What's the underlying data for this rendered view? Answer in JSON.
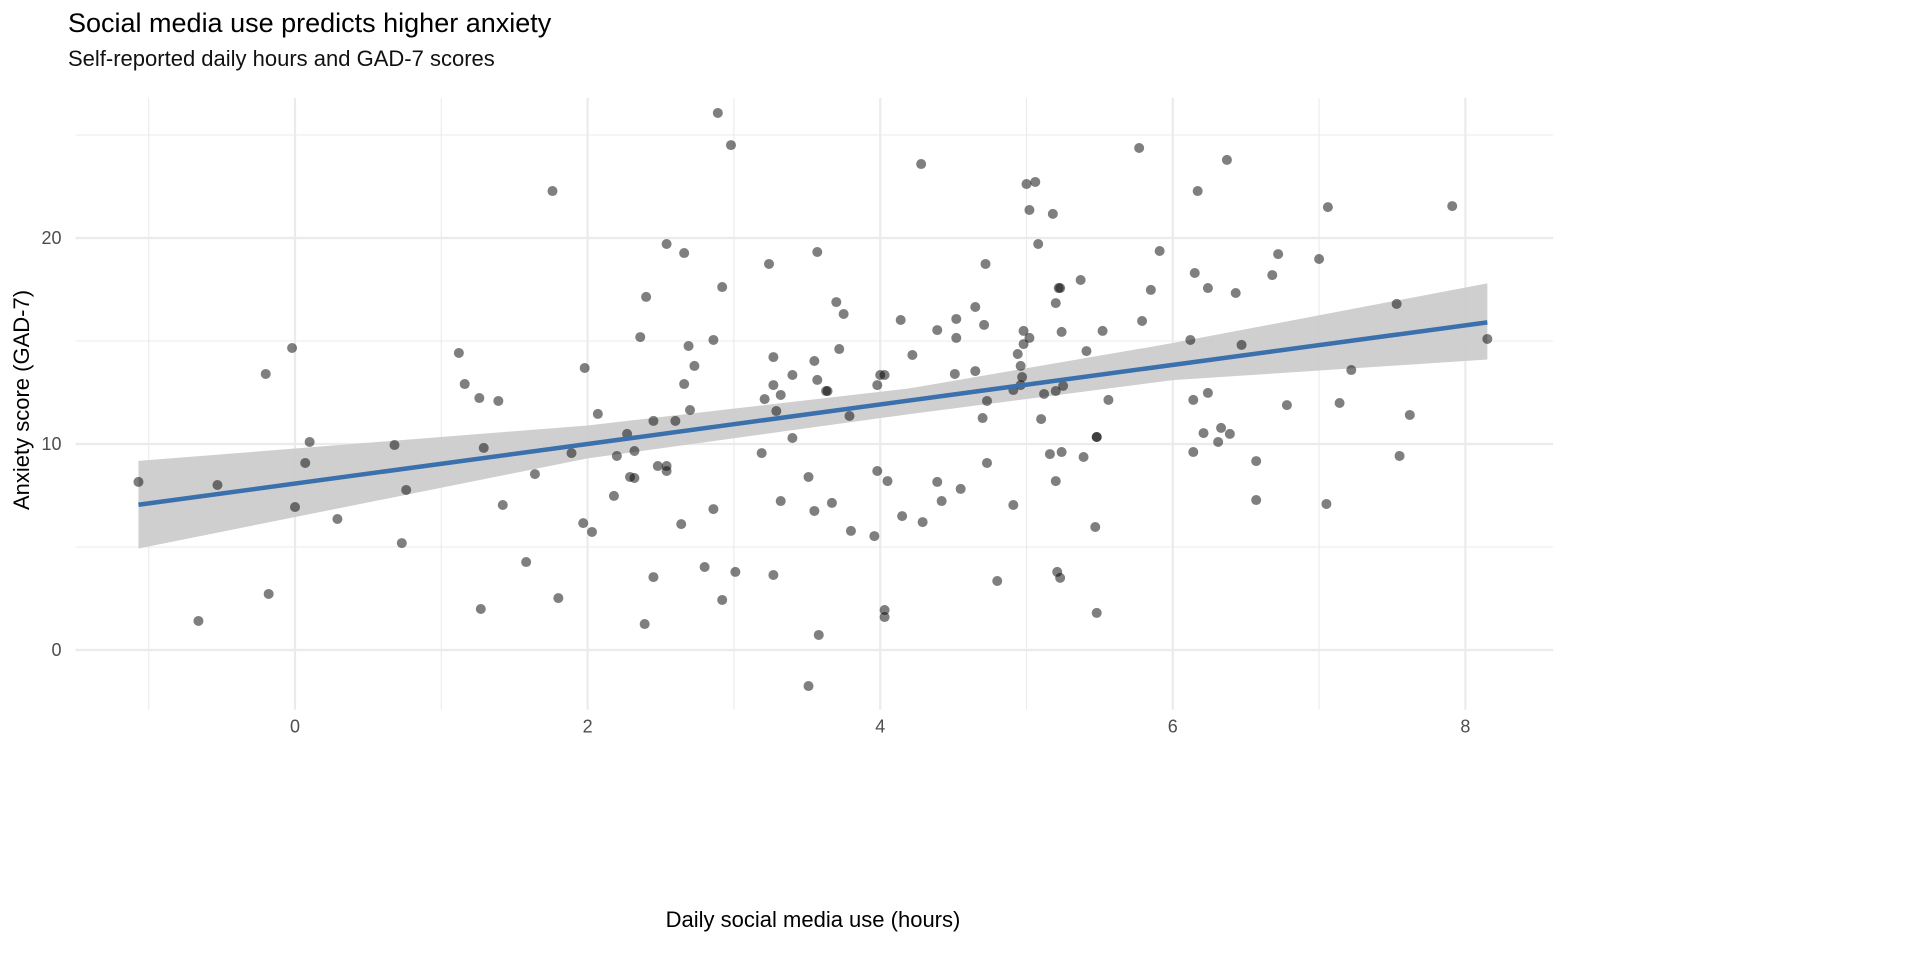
{
  "chart_data": {
    "type": "scatter",
    "title": "Social media use predicts higher anxiety",
    "subtitle": "Self-reported daily hours and GAD-7 scores",
    "xlabel": "Daily social media use (hours)",
    "ylabel": "Anxiety score (GAD-7)",
    "xlim": [
      -1.5,
      8.6
    ],
    "ylim": [
      -2.9,
      26.8
    ],
    "x_ticks": [
      0,
      2,
      4,
      6,
      8
    ],
    "y_ticks": [
      0,
      10,
      20
    ],
    "grid": true,
    "point_color": "#000000",
    "point_opacity": 0.5,
    "trend_color": "#3a70ab",
    "band_color": "#cccccc",
    "trend": {
      "intercept": 8.08,
      "slope": 0.96,
      "x_range": [
        -1.07,
        8.15
      ]
    },
    "confidence_band": [
      {
        "x": -1.07,
        "lower": 4.93,
        "upper": 9.18
      },
      {
        "x": 2.0,
        "lower": 9.3,
        "upper": 10.9
      },
      {
        "x": 4.2,
        "lower": 11.45,
        "upper": 12.7
      },
      {
        "x": 6.0,
        "lower": 13.1,
        "upper": 14.9
      },
      {
        "x": 8.15,
        "lower": 14.1,
        "upper": 17.8
      }
    ],
    "points": [
      [
        -1.07,
        8.16
      ],
      [
        -0.66,
        1.41
      ],
      [
        -0.53,
        8.01
      ],
      [
        -0.2,
        13.4
      ],
      [
        -0.18,
        2.72
      ],
      [
        -0.02,
        14.66
      ],
      [
        0,
        6.94
      ],
      [
        0.07,
        9.08
      ],
      [
        0.1,
        10.1
      ],
      [
        0.29,
        6.36
      ],
      [
        0.68,
        9.95
      ],
      [
        0.73,
        5.19
      ],
      [
        0.76,
        7.77
      ],
      [
        1.12,
        14.42
      ],
      [
        1.16,
        12.91
      ],
      [
        1.26,
        12.23
      ],
      [
        1.27,
        1.99
      ],
      [
        1.29,
        9.81
      ],
      [
        1.39,
        12.09
      ],
      [
        1.42,
        7.04
      ],
      [
        1.58,
        4.27
      ],
      [
        1.64,
        8.54
      ],
      [
        1.76,
        22.28
      ],
      [
        1.8,
        2.52
      ],
      [
        1.89,
        9.56
      ],
      [
        1.97,
        6.16
      ],
      [
        1.98,
        13.69
      ],
      [
        2.03,
        5.73
      ],
      [
        2.07,
        11.46
      ],
      [
        2.18,
        7.48
      ],
      [
        2.2,
        9.42
      ],
      [
        2.27,
        10.49
      ],
      [
        2.29,
        8.4
      ],
      [
        2.32,
        9.66
      ],
      [
        2.32,
        8.35
      ],
      [
        2.36,
        15.19
      ],
      [
        2.39,
        1.26
      ],
      [
        2.4,
        17.14
      ],
      [
        2.45,
        3.54
      ],
      [
        2.45,
        11.12
      ],
      [
        2.48,
        8.93
      ],
      [
        2.54,
        8.69
      ],
      [
        2.54,
        8.93
      ],
      [
        2.54,
        19.71
      ],
      [
        2.6,
        11.12
      ],
      [
        2.64,
        6.11
      ],
      [
        2.66,
        19.27
      ],
      [
        2.66,
        12.91
      ],
      [
        2.69,
        14.76
      ],
      [
        2.7,
        11.65
      ],
      [
        2.73,
        13.79
      ],
      [
        2.8,
        4.03
      ],
      [
        2.86,
        6.84
      ],
      [
        2.86,
        15.05
      ],
      [
        2.89,
        26.07
      ],
      [
        2.92,
        17.62
      ],
      [
        2.92,
        2.43
      ],
      [
        2.98,
        24.51
      ],
      [
        3.01,
        3.79
      ],
      [
        3.19,
        9.56
      ],
      [
        3.21,
        12.18
      ],
      [
        3.24,
        18.74
      ],
      [
        3.27,
        14.22
      ],
      [
        3.27,
        12.86
      ],
      [
        3.27,
        3.64
      ],
      [
        3.29,
        11.6
      ],
      [
        3.32,
        7.23
      ],
      [
        3.32,
        12.38
      ],
      [
        3.4,
        10.29
      ],
      [
        3.4,
        13.35
      ],
      [
        3.51,
        8.4
      ],
      [
        3.51,
        -1.75
      ],
      [
        3.55,
        14.03
      ],
      [
        3.55,
        6.75
      ],
      [
        3.57,
        13.11
      ],
      [
        3.57,
        19.32
      ],
      [
        3.58,
        0.73
      ],
      [
        3.63,
        12.57
      ],
      [
        3.64,
        12.57
      ],
      [
        3.67,
        7.14
      ],
      [
        3.7,
        16.89
      ],
      [
        3.72,
        14.61
      ],
      [
        3.75,
        16.31
      ],
      [
        3.79,
        11.36
      ],
      [
        3.8,
        5.78
      ],
      [
        3.96,
        5.53
      ],
      [
        3.98,
        12.86
      ],
      [
        3.98,
        8.69
      ],
      [
        4.0,
        13.35
      ],
      [
        4.03,
        1.94
      ],
      [
        4.03,
        13.35
      ],
      [
        4.03,
        1.6
      ],
      [
        4.05,
        8.2
      ],
      [
        4.15,
        6.5
      ],
      [
        4.14,
        16.02
      ],
      [
        4.22,
        14.32
      ],
      [
        4.28,
        23.59
      ],
      [
        4.29,
        6.21
      ],
      [
        4.39,
        8.16
      ],
      [
        4.39,
        15.53
      ],
      [
        4.42,
        7.23
      ],
      [
        4.51,
        13.4
      ],
      [
        4.52,
        16.07
      ],
      [
        4.52,
        15.15
      ],
      [
        4.55,
        7.82
      ],
      [
        4.65,
        16.65
      ],
      [
        4.65,
        13.54
      ],
      [
        4.7,
        11.26
      ],
      [
        4.71,
        15.78
      ],
      [
        4.72,
        18.74
      ],
      [
        4.73,
        9.08
      ],
      [
        4.73,
        12.09
      ],
      [
        4.8,
        3.35
      ],
      [
        4.91,
        7.04
      ],
      [
        4.91,
        12.62
      ],
      [
        4.94,
        14.37
      ],
      [
        4.96,
        12.86
      ],
      [
        4.96,
        13.79
      ],
      [
        4.97,
        13.25
      ],
      [
        4.98,
        15.49
      ],
      [
        4.98,
        14.85
      ],
      [
        5.0,
        22.62
      ],
      [
        5.02,
        15.15
      ],
      [
        5.02,
        21.36
      ],
      [
        5.06,
        22.72
      ],
      [
        5.08,
        19.71
      ],
      [
        5.1,
        11.21
      ],
      [
        5.12,
        12.43
      ],
      [
        5.16,
        9.51
      ],
      [
        5.18,
        21.17
      ],
      [
        5.2,
        16.84
      ],
      [
        5.2,
        12.57
      ],
      [
        5.2,
        8.2
      ],
      [
        5.21,
        3.79
      ],
      [
        5.22,
        17.57
      ],
      [
        5.23,
        17.57
      ],
      [
        5.23,
        3.5
      ],
      [
        5.24,
        9.61
      ],
      [
        5.24,
        15.44
      ],
      [
        5.25,
        12.82
      ],
      [
        5.37,
        17.96
      ],
      [
        5.39,
        9.37
      ],
      [
        5.41,
        14.51
      ],
      [
        5.47,
        5.97
      ],
      [
        5.48,
        10.34
      ],
      [
        5.48,
        10.34
      ],
      [
        5.48,
        1.8
      ],
      [
        5.52,
        15.49
      ],
      [
        5.56,
        12.14
      ],
      [
        5.77,
        24.37
      ],
      [
        5.79,
        15.97
      ],
      [
        5.85,
        17.48
      ],
      [
        5.91,
        19.37
      ],
      [
        6.12,
        15.05
      ],
      [
        6.14,
        12.14
      ],
      [
        6.14,
        9.61
      ],
      [
        6.15,
        18.3
      ],
      [
        6.17,
        22.28
      ],
      [
        6.21,
        10.53
      ],
      [
        6.24,
        17.57
      ],
      [
        6.24,
        12.48
      ],
      [
        6.31,
        10.1
      ],
      [
        6.33,
        10.78
      ],
      [
        6.37,
        23.79
      ],
      [
        6.39,
        10.49
      ],
      [
        6.43,
        17.33
      ],
      [
        6.47,
        14.81
      ],
      [
        6.57,
        9.17
      ],
      [
        6.57,
        7.28
      ],
      [
        6.68,
        18.2
      ],
      [
        6.72,
        19.22
      ],
      [
        6.78,
        11.89
      ],
      [
        7.0,
        18.98
      ],
      [
        7.05,
        7.09
      ],
      [
        7.06,
        21.5
      ],
      [
        7.14,
        11.99
      ],
      [
        7.22,
        13.59
      ],
      [
        7.53,
        16.8
      ],
      [
        7.55,
        9.42
      ],
      [
        7.62,
        11.41
      ],
      [
        7.91,
        21.55
      ],
      [
        8.15,
        15.1
      ]
    ]
  }
}
